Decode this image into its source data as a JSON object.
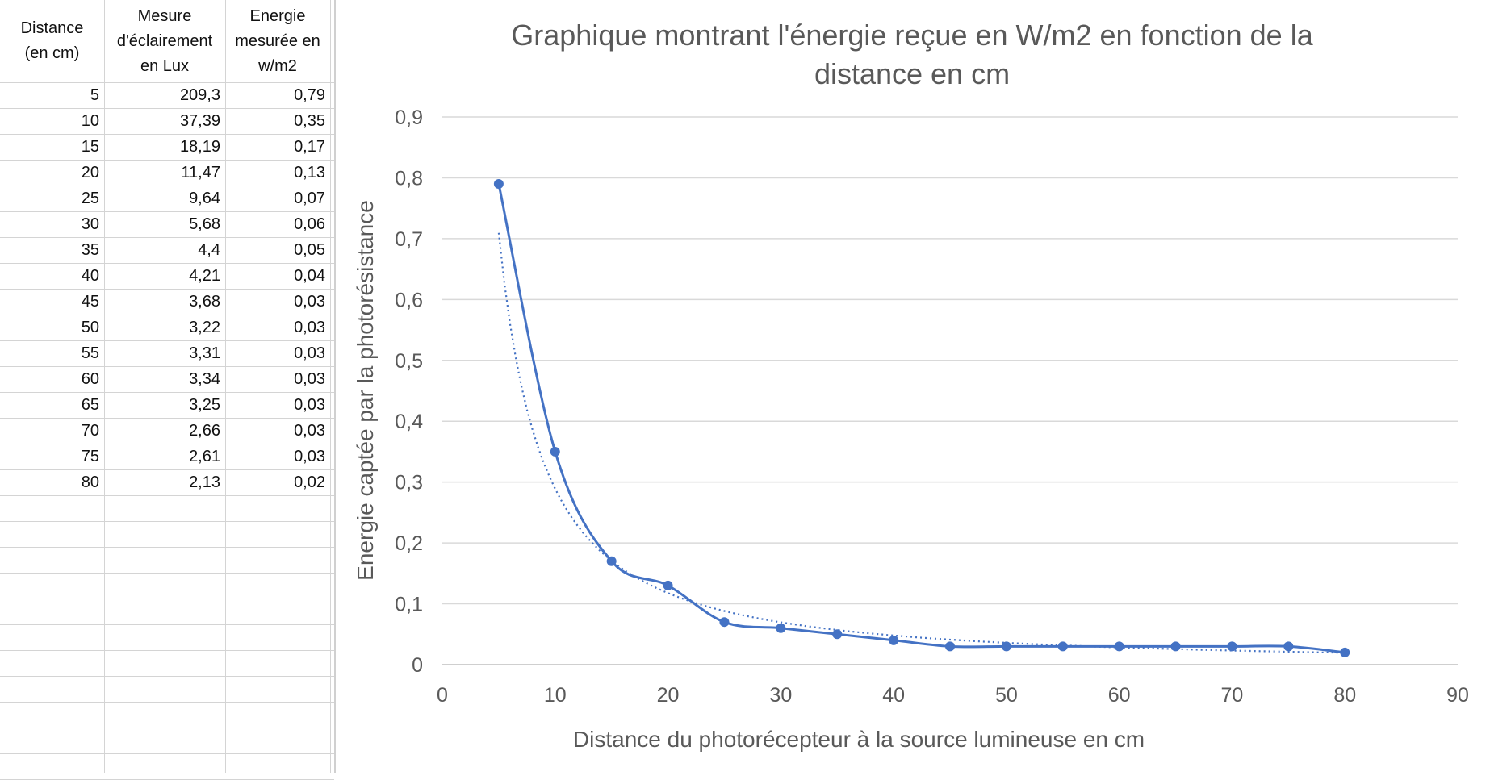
{
  "table": {
    "headers": [
      {
        "lines": [
          "Distance",
          "(en cm)"
        ]
      },
      {
        "lines": [
          "Mesure",
          "d'éclairement",
          "en Lux"
        ]
      },
      {
        "lines": [
          "Energie",
          "mesurée en",
          "w/m2"
        ]
      }
    ],
    "rows": [
      [
        "5",
        "209,3",
        "0,79"
      ],
      [
        "10",
        "37,39",
        "0,35"
      ],
      [
        "15",
        "18,19",
        "0,17"
      ],
      [
        "20",
        "11,47",
        "0,13"
      ],
      [
        "25",
        "9,64",
        "0,07"
      ],
      [
        "30",
        "5,68",
        "0,06"
      ],
      [
        "35",
        "4,4",
        "0,05"
      ],
      [
        "40",
        "4,21",
        "0,04"
      ],
      [
        "45",
        "3,68",
        "0,03"
      ],
      [
        "50",
        "3,22",
        "0,03"
      ],
      [
        "55",
        "3,31",
        "0,03"
      ],
      [
        "60",
        "3,34",
        "0,03"
      ],
      [
        "65",
        "3,25",
        "0,03"
      ],
      [
        "70",
        "2,66",
        "0,03"
      ],
      [
        "75",
        "2,61",
        "0,03"
      ],
      [
        "80",
        "2,13",
        "0,02"
      ]
    ]
  },
  "chart_data": {
    "type": "scatter",
    "title": "Graphique montrant l'énergie reçue en W/m2 en fonction de la distance en cm",
    "title_lines": [
      "Graphique montrant l'énergie reçue en W/m2 en fonction de la",
      "distance en cm"
    ],
    "xlabel": "Distance du photorécepteur à la source lumineuse en cm",
    "ylabel": "Energie captée par la photorésistance",
    "xlim": [
      0,
      90
    ],
    "ylim": [
      0,
      0.9
    ],
    "x_ticks": [
      0,
      10,
      20,
      30,
      40,
      50,
      60,
      70,
      80,
      90
    ],
    "x_tick_labels": [
      "0",
      "10",
      "20",
      "30",
      "40",
      "50",
      "60",
      "70",
      "80",
      "90"
    ],
    "y_ticks": [
      0,
      0.1,
      0.2,
      0.3,
      0.4,
      0.5,
      0.6,
      0.7,
      0.8,
      0.9
    ],
    "y_tick_labels": [
      "0",
      "0,1",
      "0,2",
      "0,3",
      "0,4",
      "0,5",
      "0,6",
      "0,7",
      "0,8",
      "0,9"
    ],
    "grid": "horizontal",
    "series": [
      {
        "style": "smoothed line with markers",
        "color": "#4472C4",
        "x": [
          5,
          10,
          15,
          20,
          25,
          30,
          35,
          40,
          45,
          50,
          55,
          60,
          65,
          70,
          75,
          80
        ],
        "y": [
          0.79,
          0.35,
          0.17,
          0.13,
          0.07,
          0.06,
          0.05,
          0.04,
          0.03,
          0.03,
          0.03,
          0.03,
          0.03,
          0.03,
          0.03,
          0.02
        ]
      }
    ],
    "trendline": {
      "type": "power",
      "style": "dotted",
      "color": "#4472C4",
      "x_range": [
        5,
        80
      ]
    }
  }
}
